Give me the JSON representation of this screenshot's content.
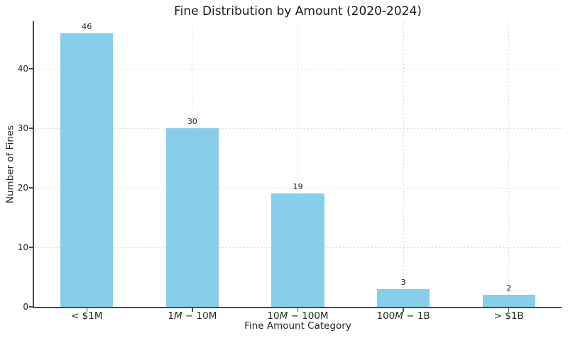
{
  "chart_data": {
    "type": "bar",
    "title": "Fine Distribution by Amount (2020-2024)",
    "xlabel": "Fine Amount Category",
    "ylabel": "Number of Fines",
    "categories": [
      "< $1M",
      "1M − 10M",
      "10M − 100M",
      "100M − 1B",
      "> $1B"
    ],
    "categories_rich": [
      [
        {
          "t": "< $1M"
        }
      ],
      [
        {
          "t": "1"
        },
        {
          "t": "M",
          "i": true
        },
        {
          "t": " − "
        },
        {
          "t": "10M"
        }
      ],
      [
        {
          "t": "10"
        },
        {
          "t": "M",
          "i": true
        },
        {
          "t": " − "
        },
        {
          "t": "100M"
        }
      ],
      [
        {
          "t": "100"
        },
        {
          "t": "M",
          "i": true
        },
        {
          "t": " − "
        },
        {
          "t": "1B"
        }
      ],
      [
        {
          "t": "> $1B"
        }
      ]
    ],
    "values": [
      46,
      30,
      19,
      3,
      2
    ],
    "bar_value_labels": [
      "46",
      "30",
      "19",
      "3",
      "2"
    ],
    "yticks": [
      0,
      10,
      20,
      30,
      40
    ],
    "ylim": [
      0,
      48
    ],
    "grid": {
      "horizontal": true,
      "vertical": true,
      "style": "dashed"
    },
    "legend": null,
    "colors": {
      "bar": "#87CEEB",
      "grid": "#d9d9d9",
      "spine": "#4a4a4a",
      "text": "#262626",
      "background": "#ffffff"
    }
  }
}
